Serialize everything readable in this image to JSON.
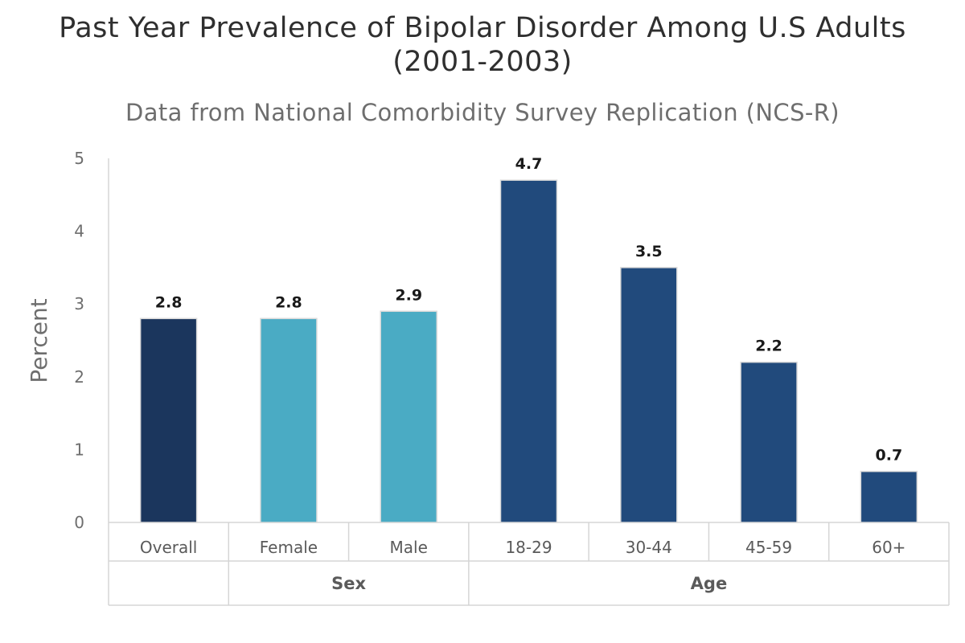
{
  "chart_data": {
    "type": "bar",
    "title": "Past Year Prevalence of Bipolar Disorder Among U.S Adults (2001-2003)",
    "title_lines": [
      "Past Year Prevalence of Bipolar Disorder Among U.S Adults",
      "(2001-2003)"
    ],
    "subtitle": "Data from National Comorbidity Survey Replication (NCS-R)",
    "xlabel": "",
    "ylabel": "Percent",
    "ylim": [
      0,
      5
    ],
    "yticks": [
      "0",
      "1",
      "2",
      "3",
      "4",
      "5"
    ],
    "grid": false,
    "categories": [
      "Overall",
      "Female",
      "Male",
      "18-29",
      "30-44",
      "45-59",
      "60+"
    ],
    "values": [
      2.8,
      2.8,
      2.9,
      4.7,
      3.5,
      2.2,
      0.7
    ],
    "value_labels": [
      "2.8",
      "2.8",
      "2.9",
      "4.7",
      "3.5",
      "2.2",
      "0.7"
    ],
    "groups": [
      {
        "label": "",
        "categories": [
          "Overall"
        ]
      },
      {
        "label": "Sex",
        "categories": [
          "Female",
          "Male"
        ]
      },
      {
        "label": "Age",
        "categories": [
          "18-29",
          "30-44",
          "45-59",
          "60+"
        ]
      }
    ],
    "bar_colors": [
      "#1b365d",
      "#4aabc4",
      "#4aabc4",
      "#214a7c",
      "#214a7c",
      "#214a7c",
      "#214a7c"
    ]
  }
}
